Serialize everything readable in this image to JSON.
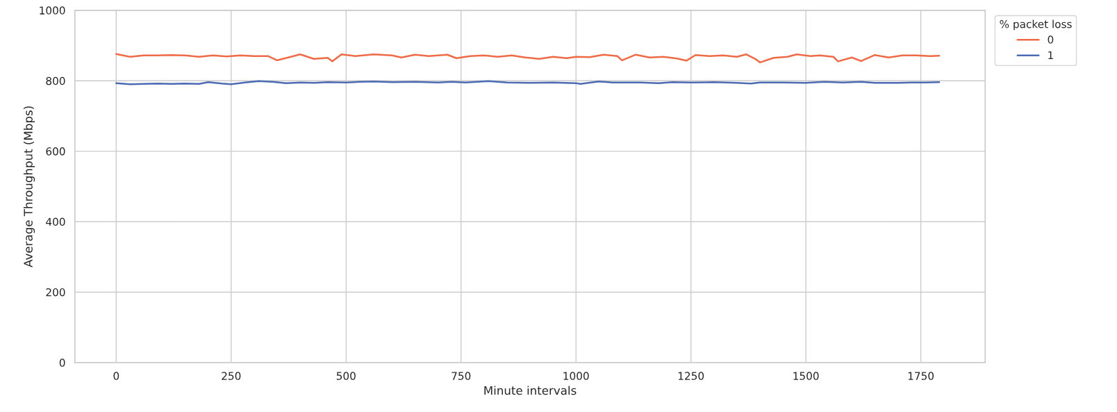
{
  "chart_data": {
    "type": "line",
    "xlabel": "Minute intervals",
    "ylabel": "Average Throughput (Mbps)",
    "legend_title": "% packet loss",
    "xlim": [
      -90,
      1890
    ],
    "xticks": [
      0,
      250,
      500,
      750,
      1000,
      1250,
      1500,
      1750
    ],
    "ylim": [
      0,
      1000
    ],
    "yticks": [
      0,
      200,
      400,
      600,
      800,
      1000
    ],
    "grid": true,
    "legend": "top right",
    "marker": "none",
    "line_style": "solid",
    "series": [
      {
        "name": "0",
        "color": "#ef6a46",
        "x": [
          0,
          30,
          60,
          90,
          120,
          150,
          180,
          210,
          240,
          270,
          300,
          330,
          350,
          380,
          400,
          430,
          460,
          470,
          490,
          520,
          560,
          600,
          620,
          650,
          680,
          720,
          740,
          770,
          800,
          830,
          860,
          890,
          920,
          950,
          980,
          1000,
          1030,
          1060,
          1090,
          1100,
          1130,
          1160,
          1190,
          1220,
          1240,
          1260,
          1290,
          1320,
          1350,
          1370,
          1390,
          1400,
          1430,
          1460,
          1480,
          1510,
          1530,
          1560,
          1570,
          1600,
          1620,
          1650,
          1680,
          1710,
          1740,
          1770,
          1790
        ],
        "values": [
          876,
          868,
          872,
          872,
          873,
          872,
          868,
          872,
          869,
          872,
          870,
          870,
          858,
          868,
          875,
          862,
          865,
          855,
          875,
          870,
          875,
          872,
          866,
          874,
          870,
          874,
          864,
          870,
          872,
          868,
          872,
          866,
          862,
          868,
          864,
          868,
          867,
          874,
          870,
          858,
          874,
          866,
          868,
          863,
          857,
          873,
          870,
          872,
          868,
          875,
          862,
          852,
          865,
          868,
          875,
          870,
          872,
          868,
          855,
          866,
          856,
          873,
          866,
          872,
          872,
          870,
          871
        ]
      },
      {
        "name": "1",
        "color": "#4c6bb3",
        "x": [
          0,
          30,
          60,
          90,
          120,
          150,
          180,
          200,
          230,
          250,
          280,
          310,
          340,
          370,
          400,
          430,
          460,
          500,
          530,
          560,
          600,
          650,
          700,
          730,
          760,
          810,
          850,
          900,
          950,
          1000,
          1010,
          1050,
          1080,
          1110,
          1140,
          1180,
          1210,
          1250,
          1300,
          1350,
          1380,
          1400,
          1450,
          1500,
          1540,
          1580,
          1620,
          1650,
          1700,
          1730,
          1760,
          1790
        ],
        "values": [
          793,
          790,
          791,
          792,
          791,
          792,
          791,
          796,
          792,
          790,
          795,
          799,
          797,
          793,
          795,
          794,
          796,
          795,
          797,
          798,
          796,
          797,
          795,
          797,
          795,
          799,
          795,
          794,
          795,
          793,
          791,
          798,
          795,
          795,
          795,
          793,
          796,
          795,
          796,
          794,
          792,
          795,
          795,
          794,
          797,
          795,
          797,
          794,
          794,
          795,
          795,
          796
        ]
      }
    ]
  }
}
